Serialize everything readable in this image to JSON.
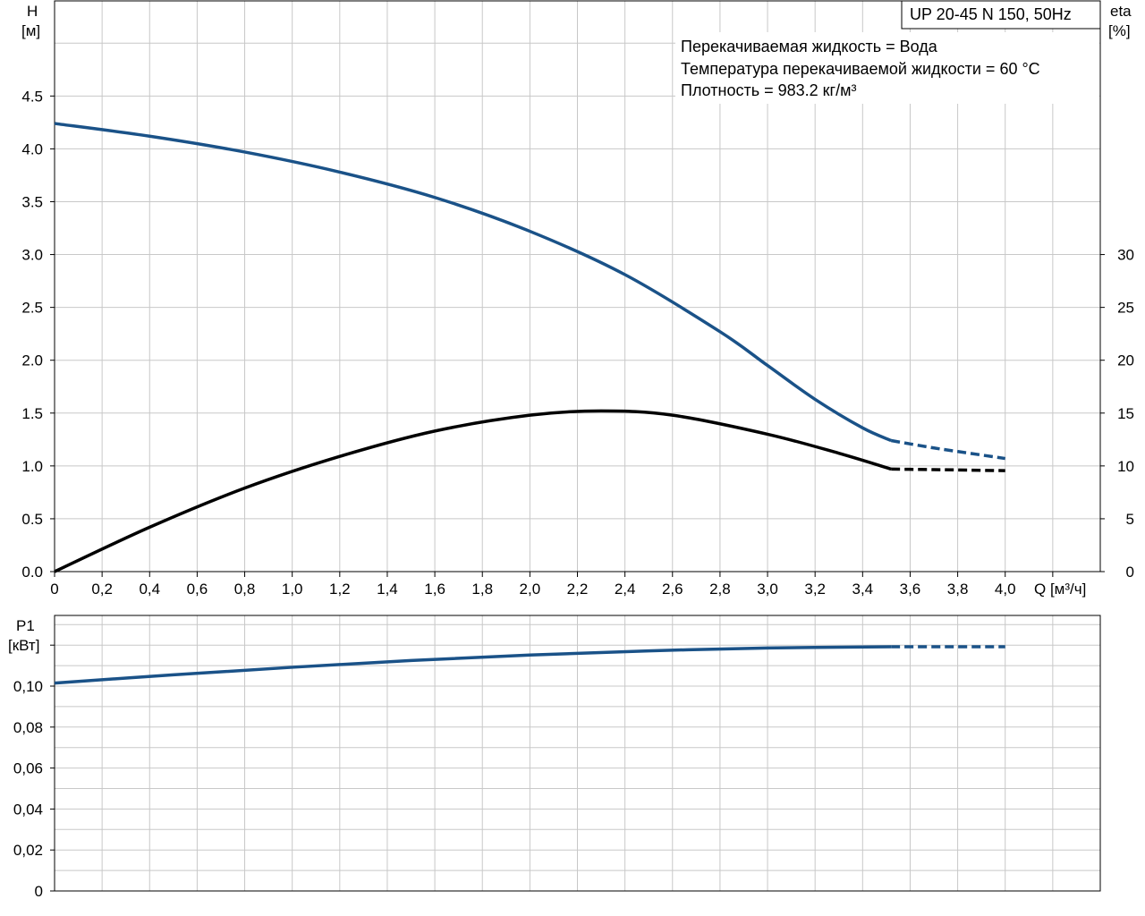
{
  "colors": {
    "head_curve": "#1a5288",
    "eta_curve": "#000000",
    "power_curve": "#1a5288",
    "grid": "#c8c8c8"
  },
  "legend_box": {
    "text": "UP 20-45 N 150, 50Hz"
  },
  "annotations": [
    "Перекачиваемая жидкость = Вода",
    "Температура перекачиваемой жидкости = 60 °C",
    "Плотность = 983.2 кг/м³"
  ],
  "chart_data": [
    {
      "type": "line",
      "title": "",
      "xlabel": "Q [м³/ч]",
      "xlim": [
        0,
        4.4
      ],
      "x_ticks": [
        "0",
        "0,2",
        "0,4",
        "0,6",
        "0,8",
        "1,0",
        "1,2",
        "1,4",
        "1,6",
        "1,8",
        "2,0",
        "2,2",
        "2,4",
        "2,6",
        "2,8",
        "3,0",
        "3,2",
        "3,4",
        "3,6",
        "3,8",
        "4,0"
      ],
      "ylabel_left": {
        "line1": "H",
        "line2": "[м]"
      },
      "ylim_left": [
        0,
        5.4
      ],
      "y_ticks_left": [
        "0.0",
        "0.5",
        "1.0",
        "1.5",
        "2.0",
        "2.5",
        "3.0",
        "3.5",
        "4.0",
        "4.5"
      ],
      "ylabel_right": {
        "line1": "eta",
        "line2": "[%]"
      },
      "ylim_right": [
        0,
        54
      ],
      "y_ticks_right": [
        "0",
        "5",
        "10",
        "15",
        "20",
        "25",
        "30"
      ],
      "grid": true,
      "series": [
        {
          "axis": "left",
          "style": "solid",
          "x": [
            0,
            0.4,
            0.8,
            1.2,
            1.6,
            2.0,
            2.4,
            2.8,
            3.0,
            3.2,
            3.4,
            3.52
          ],
          "y": [
            4.24,
            4.12,
            3.97,
            3.78,
            3.54,
            3.22,
            2.81,
            2.27,
            1.95,
            1.63,
            1.36,
            1.24
          ]
        },
        {
          "axis": "left",
          "style": "dashed",
          "x": [
            3.52,
            3.7,
            3.85,
            4.0
          ],
          "y": [
            1.24,
            1.17,
            1.12,
            1.07
          ]
        },
        {
          "axis": "right",
          "style": "solid",
          "x": [
            0,
            0.4,
            0.8,
            1.2,
            1.6,
            2.0,
            2.3,
            2.6,
            3.0,
            3.3,
            3.52
          ],
          "y": [
            0,
            4.2,
            7.9,
            10.9,
            13.3,
            14.8,
            15.2,
            14.8,
            13.0,
            11.2,
            9.7
          ]
        },
        {
          "axis": "right",
          "style": "dashed",
          "x": [
            3.52,
            3.7,
            3.85,
            4.0
          ],
          "y": [
            9.7,
            9.65,
            9.6,
            9.55
          ]
        }
      ]
    },
    {
      "type": "line",
      "title": "",
      "xlim": [
        0,
        4.4
      ],
      "ylabel_left": {
        "line1": "P1",
        "line2": "[кВт]"
      },
      "ylim_left": [
        0,
        0.1345
      ],
      "y_ticks_left": [
        "0",
        "0,02",
        "0,04",
        "0,06",
        "0,08",
        "0,10"
      ],
      "grid": true,
      "series": [
        {
          "axis": "left",
          "style": "solid",
          "x": [
            0,
            0.5,
            1.0,
            1.5,
            2.0,
            2.5,
            3.0,
            3.52
          ],
          "y": [
            0.1015,
            0.1055,
            0.1092,
            0.1125,
            0.1152,
            0.1172,
            0.1186,
            0.1192
          ]
        },
        {
          "axis": "left",
          "style": "dashed",
          "x": [
            3.52,
            3.75,
            4.0
          ],
          "y": [
            0.1192,
            0.1192,
            0.1192
          ]
        }
      ]
    }
  ]
}
